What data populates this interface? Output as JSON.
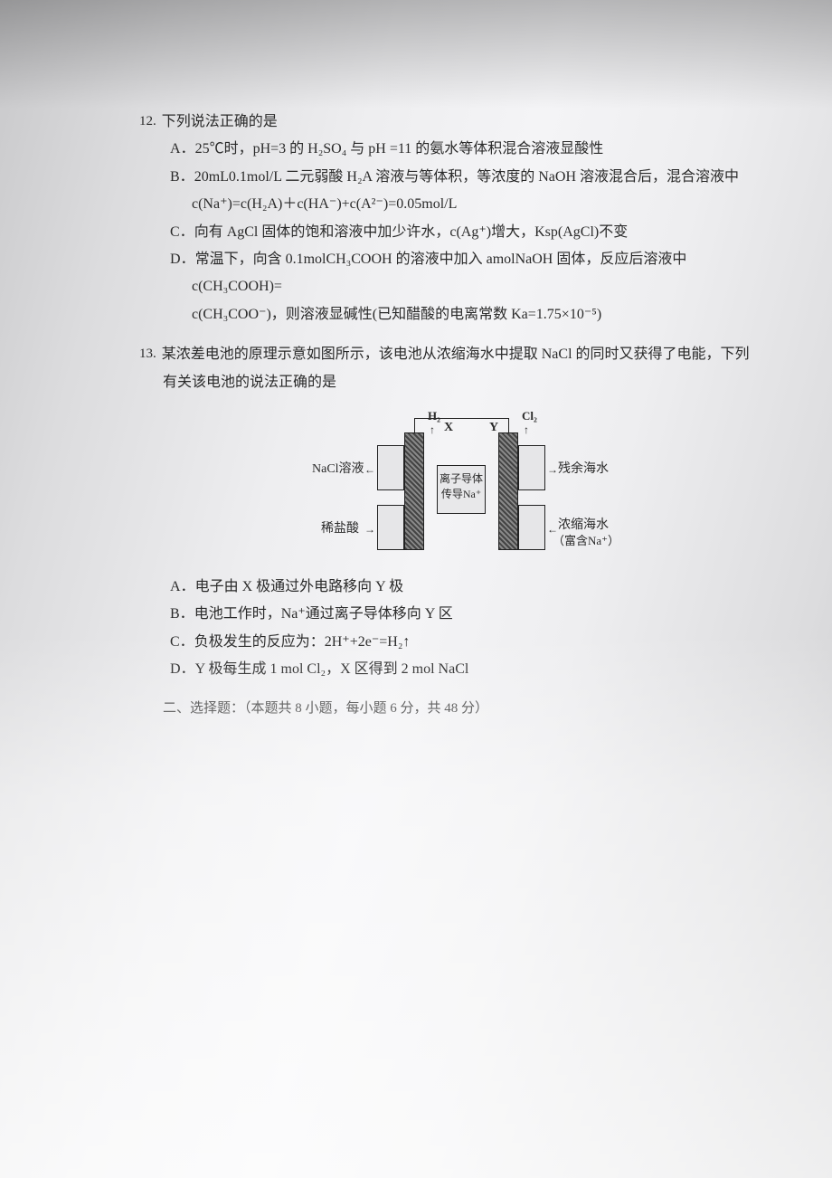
{
  "colors": {
    "text": "#2a2a2a",
    "bg_light": "#f4f4f6",
    "bg_dark": "#c8c8ca",
    "border": "#222222"
  },
  "typography": {
    "body_fontsize": 16,
    "line_height": 1.9,
    "font_family": "SimSun"
  },
  "q12": {
    "number": "12.",
    "stem": "下列说法正确的是",
    "A": "25℃时，pH=3 的 H₂SO₄ 与 pH =11 的氨水等体积混合溶液显酸性",
    "B": "20mL0.1mol/L 二元弱酸 H₂A 溶液与等体积，等浓度的 NaOH 溶液混合后，混合溶液中",
    "B_sub": "c(Na⁺)=c(H₂A)＋c(HA⁻)+c(A²⁻)=0.05mol/L",
    "C": "向有 AgCl 固体的饱和溶液中加少许水，c(Ag⁺)增大，Ksp(AgCl)不变",
    "D": "常温下，向含 0.1molCH₃COOH 的溶液中加入 amolNaOH 固体，反应后溶液中 c(CH₃COOH)=",
    "D_sub": "c(CH₃COO⁻)，则溶液显碱性(已知醋酸的电离常数 Ka=1.75×10⁻⁵)"
  },
  "q13": {
    "number": "13.",
    "stem1": "某浓差电池的原理示意如图所示，该电池从浓缩海水中提取 NaCl 的同时又获得了电能，下列",
    "stem2": "有关该电池的说法正确的是",
    "A": "电子由 X 极通过外电路移向 Y 极",
    "B": "电池工作时，Na⁺通过离子导体移向 Y 区",
    "C": "负极发生的反应为：2H⁺+2e⁻=H₂↑",
    "D": "Y 极每生成 1 mol Cl₂，X 区得到 2 mol NaCl"
  },
  "diagram": {
    "type": "schematic",
    "gas_left": "H₂",
    "gas_right": "Cl₂",
    "electrode_left": "X",
    "electrode_right": "Y",
    "membrane_line1": "离子导体",
    "membrane_line2": "传导Na⁺",
    "flow_top_left": "NaCl溶液",
    "flow_top_right": "残余海水",
    "flow_bottom_left": "稀盐酸",
    "flow_bottom_right": "浓缩海水",
    "flow_bottom_right2": "（富含Na⁺）",
    "arrow_in": "→",
    "arrow_out": "→",
    "arrow_up": "↑",
    "electrode_color": "#666666",
    "box_bg": "#e8e8ea",
    "tank_bg": "#e6e6e8"
  },
  "footer": "二、选择题：（本题共 8 小题，每小题 6 分，共 48 分）",
  "labels": {
    "A": "A．",
    "B": "B．",
    "C": "C．",
    "D": "D．"
  }
}
